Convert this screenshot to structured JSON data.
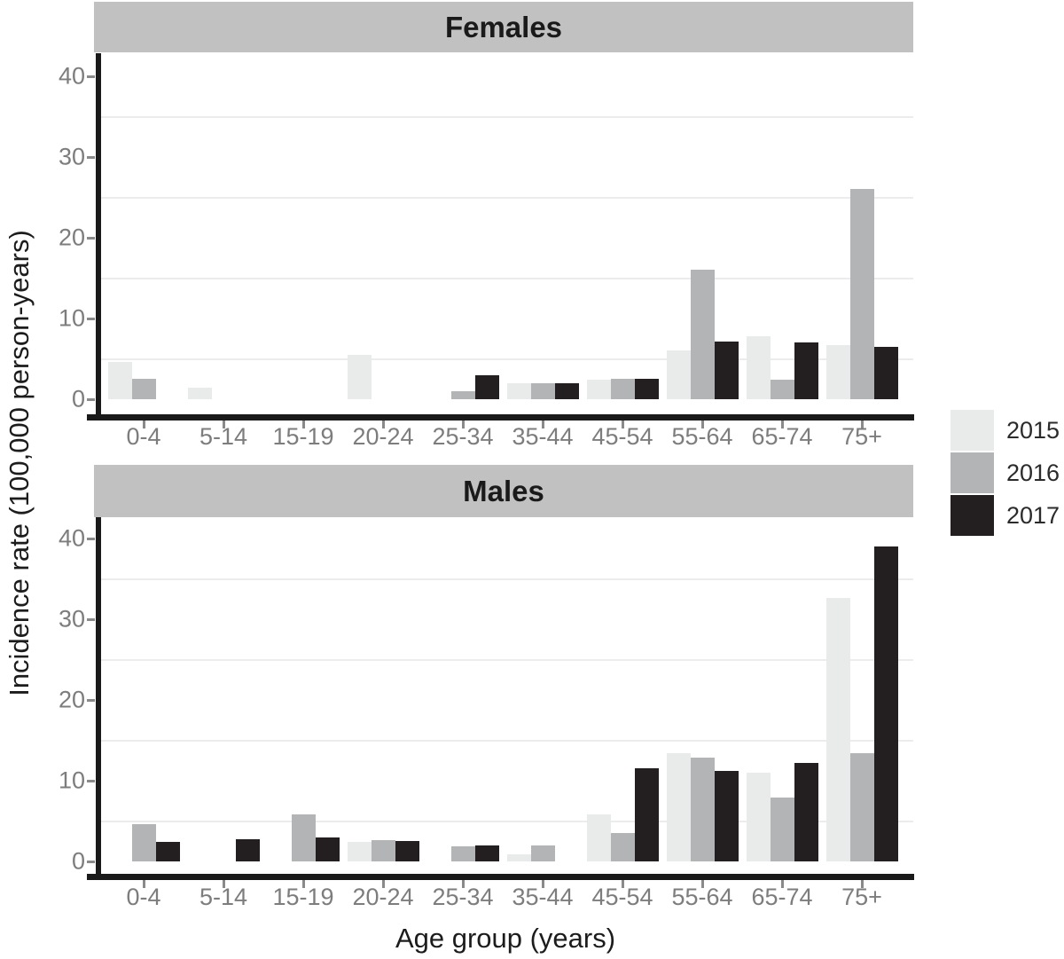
{
  "figure": {
    "ylabel": "Incidence rate (100,000 person-years)",
    "xlabel": "Age group (years)"
  },
  "legend": {
    "entries": [
      {
        "label": "2015",
        "color": "#e9eaea"
      },
      {
        "label": "2016",
        "color": "#b3b4b5"
      },
      {
        "label": "2017",
        "color": "#231f20"
      }
    ]
  },
  "colors": {
    "strip_bg": "#c1c1c1",
    "strip_text": "#1a1a1a",
    "axis_line": "#1a1a1a",
    "tick_label": "#7d7d7d",
    "minor_gridline": "#ececec",
    "background": "#ffffff"
  },
  "chart_data": [
    {
      "type": "bar",
      "panel": "Females",
      "categories": [
        "0-4",
        "5-14",
        "15-19",
        "20-24",
        "25-34",
        "35-44",
        "45-54",
        "55-64",
        "65-74",
        "75+"
      ],
      "series": [
        {
          "name": "2015",
          "color": "#e9eaea",
          "values": [
            4.6,
            1.4,
            0,
            5.5,
            0,
            2.0,
            2.4,
            6.0,
            7.8,
            6.7
          ]
        },
        {
          "name": "2016",
          "color": "#b3b4b5",
          "values": [
            2.5,
            0,
            0,
            0,
            1.0,
            2.0,
            2.5,
            16.0,
            2.4,
            26.1
          ]
        },
        {
          "name": "2017",
          "color": "#231f20",
          "values": [
            0,
            0,
            0,
            0,
            3.0,
            2.0,
            2.5,
            7.1,
            7.0,
            6.5
          ]
        }
      ],
      "ylabel": "Incidence rate (100,000 person-years)",
      "xlabel": "Age group (years)",
      "ylim": [
        0,
        42
      ],
      "yticks": [
        0,
        10,
        20,
        30,
        40
      ],
      "minor_gridlines": [
        5,
        15,
        25,
        35
      ],
      "legend_position": "right"
    },
    {
      "type": "bar",
      "panel": "Males",
      "categories": [
        "0-4",
        "5-14",
        "15-19",
        "20-24",
        "25-34",
        "35-44",
        "45-54",
        "55-64",
        "65-74",
        "75+"
      ],
      "series": [
        {
          "name": "2015",
          "color": "#e9eaea",
          "values": [
            0,
            0,
            0,
            2.4,
            0,
            0.9,
            5.8,
            13.4,
            11.0,
            32.6
          ]
        },
        {
          "name": "2016",
          "color": "#b3b4b5",
          "values": [
            4.6,
            0,
            5.8,
            2.6,
            1.9,
            2.0,
            3.5,
            12.9,
            7.9,
            13.4
          ]
        },
        {
          "name": "2017",
          "color": "#231f20",
          "values": [
            2.4,
            2.7,
            3.0,
            2.5,
            2.0,
            0,
            11.5,
            11.2,
            12.2,
            39.0
          ]
        }
      ],
      "ylabel": "Incidence rate (100,000 person-years)",
      "xlabel": "Age group (years)",
      "ylim": [
        0,
        42
      ],
      "yticks": [
        0,
        10,
        20,
        30,
        40
      ],
      "minor_gridlines": [
        5,
        15,
        25,
        35
      ],
      "legend_position": "right"
    }
  ]
}
